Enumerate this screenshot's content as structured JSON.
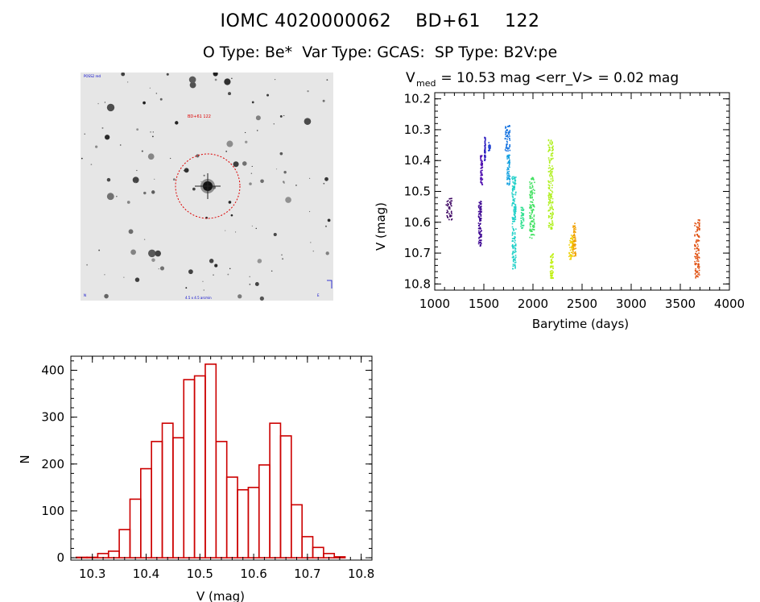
{
  "header": {
    "title": "IOMC 4020000062    BD+61    122",
    "subtitle": "O Type: Be*  Var Type: GCAS:  SP Type: B2V:pe"
  },
  "image_panel": {
    "target_label": "BD+61 122",
    "corner_top_left": "POSS2 red",
    "corner_bottom": "4.5 x 4.5 arcmin",
    "corner_bottom_left": "N",
    "corner_bottom_right": "E"
  },
  "colors": {
    "histogram": "#cc0000",
    "circle": "#dd0000"
  },
  "chart_data": [
    {
      "type": "scatter",
      "title_parts": {
        "v": "V",
        "sub": "med",
        "rest": " = 10.53 mag <err_V> = 0.02 mag"
      },
      "xlabel": "Barytime (days)",
      "ylabel": "V (mag)",
      "xlim": [
        1000,
        4000
      ],
      "ylim": [
        10.82,
        10.18
      ],
      "xticks": [
        1000,
        1500,
        2000,
        2500,
        3000,
        3500,
        4000
      ],
      "yticks": [
        10.2,
        10.3,
        10.4,
        10.5,
        10.6,
        10.7,
        10.8
      ],
      "ytick_labels": [
        "10.2",
        "10.3",
        "10.4",
        "10.5",
        "10.6",
        "10.7",
        "10.8"
      ],
      "clusters": [
        {
          "x": [
            1110,
            1170
          ],
          "y": [
            10.52,
            10.59
          ],
          "color": "#3a0060"
        },
        {
          "x": [
            1440,
            1470
          ],
          "y": [
            10.53,
            10.68
          ],
          "color": "#3a0090"
        },
        {
          "x": [
            1460,
            1480
          ],
          "y": [
            10.38,
            10.48
          ],
          "color": "#5010b0"
        },
        {
          "x": [
            1500,
            1510
          ],
          "y": [
            10.32,
            10.4
          ],
          "color": "#3020c0"
        },
        {
          "x": [
            1540,
            1560
          ],
          "y": [
            10.34,
            10.37
          ],
          "color": "#2040d0"
        },
        {
          "x": [
            1710,
            1760
          ],
          "y": [
            10.28,
            10.37
          ],
          "color": "#1070e0"
        },
        {
          "x": [
            1730,
            1760
          ],
          "y": [
            10.38,
            10.48
          ],
          "color": "#10a0e0"
        },
        {
          "x": [
            1780,
            1820
          ],
          "y": [
            10.45,
            10.75
          ],
          "color": "#20d0c8"
        },
        {
          "x": [
            1870,
            1900
          ],
          "y": [
            10.55,
            10.62
          ],
          "color": "#30e090"
        },
        {
          "x": [
            1960,
            2010
          ],
          "y": [
            10.45,
            10.65
          ],
          "color": "#40e060"
        },
        {
          "x": [
            2150,
            2200
          ],
          "y": [
            10.33,
            10.62
          ],
          "color": "#b0f020"
        },
        {
          "x": [
            2170,
            2200
          ],
          "y": [
            10.7,
            10.78
          ],
          "color": "#c0f010"
        },
        {
          "x": [
            2360,
            2400
          ],
          "y": [
            10.64,
            10.72
          ],
          "color": "#f0d000"
        },
        {
          "x": [
            2400,
            2430
          ],
          "y": [
            10.6,
            10.71
          ],
          "color": "#f0a000"
        },
        {
          "x": [
            3640,
            3690
          ],
          "y": [
            10.59,
            10.78
          ],
          "color": "#e05010"
        }
      ]
    },
    {
      "type": "bar",
      "xlabel": "V (mag)",
      "ylabel": "N",
      "xlim": [
        10.26,
        10.82
      ],
      "ylim": [
        -5,
        430
      ],
      "xticks": [
        10.3,
        10.4,
        10.5,
        10.6,
        10.7,
        10.8
      ],
      "xtick_labels": [
        "10.3",
        "10.4",
        "10.5",
        "10.6",
        "10.7",
        "10.8"
      ],
      "yticks": [
        0,
        100,
        200,
        300,
        400
      ],
      "ytick_labels": [
        "0",
        "100",
        "200",
        "300",
        "400"
      ],
      "bin_start": 10.28,
      "bin_width": 0.02,
      "values": [
        1,
        1,
        9,
        14,
        60,
        125,
        190,
        248,
        287,
        256,
        380,
        388,
        413,
        248,
        172,
        145,
        150,
        198,
        287,
        260,
        113,
        45,
        22,
        9,
        2
      ]
    }
  ]
}
